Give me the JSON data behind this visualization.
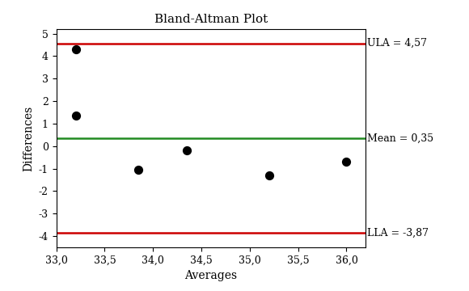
{
  "title": "Bland-Altman Plot",
  "xlabel": "Averages",
  "ylabel": "Differences",
  "points_x": [
    33.2,
    33.2,
    33.85,
    34.35,
    35.2,
    36.0
  ],
  "points_y": [
    4.3,
    1.35,
    -1.05,
    -0.2,
    -1.3,
    -0.7
  ],
  "mean": 0.35,
  "ula": 4.57,
  "lla": -3.87,
  "mean_label": "Mean = 0,35",
  "ula_label": "ULA = 4,57",
  "lla_label": "LLA = -3,87",
  "line_color_red": "#cc0000",
  "line_color_green": "#228B22",
  "point_color": "#000000",
  "xlim": [
    33.0,
    36.2
  ],
  "ylim": [
    -4.5,
    5.2
  ],
  "xticks": [
    33.0,
    33.5,
    34.0,
    34.5,
    35.0,
    35.5,
    36.0
  ],
  "yticks": [
    -4,
    -3,
    -2,
    -1,
    0,
    1,
    2,
    3,
    4,
    5
  ],
  "title_fontsize": 11,
  "label_fontsize": 10,
  "tick_fontsize": 9,
  "annotation_fontsize": 9,
  "point_size": 50,
  "line_width": 1.8
}
